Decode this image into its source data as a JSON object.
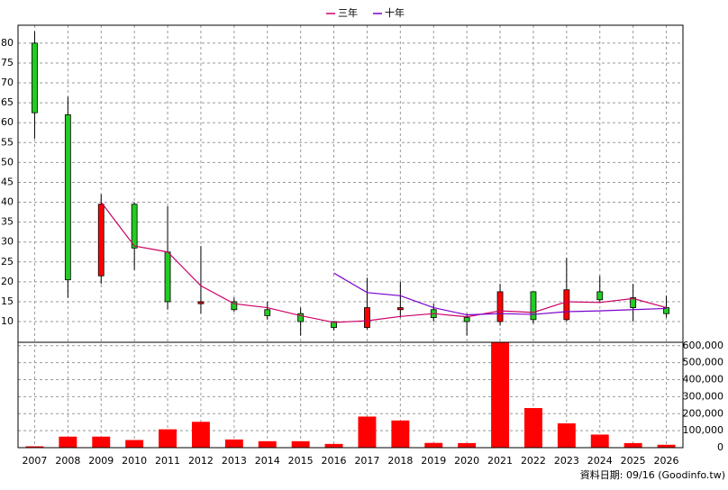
{
  "chart_data": [
    {
      "type": "candlestick",
      "categories": [
        "2007",
        "2008",
        "2009",
        "2010",
        "2011",
        "2012",
        "2013",
        "2014",
        "2015",
        "2016",
        "2017",
        "2018",
        "2019",
        "2020",
        "2021",
        "2022",
        "2023",
        "2024",
        "2025",
        "2026"
      ],
      "open": [
        80,
        62,
        21.5,
        39.5,
        27.5,
        14.5,
        15,
        13,
        12,
        10,
        8.5,
        13,
        13,
        11,
        10,
        17.5,
        10.5,
        17.5,
        16,
        13.5
      ],
      "high": [
        83,
        66.5,
        42,
        40,
        39,
        29,
        16,
        15,
        13.5,
        10,
        21,
        20,
        14.5,
        12,
        19.5,
        17.5,
        26,
        21.5,
        19.5,
        16.5
      ],
      "low": [
        56,
        16,
        19.5,
        23,
        13,
        12,
        12.5,
        10.5,
        6.5,
        7.8,
        8,
        11,
        10,
        6.5,
        9,
        9.5,
        10,
        15,
        10,
        11
      ],
      "close": [
        62.5,
        20.5,
        39.5,
        28.5,
        15,
        15,
        13,
        11.5,
        10,
        8.5,
        13.5,
        13.5,
        11,
        10,
        17.5,
        10.5,
        18,
        15.5,
        13.5,
        12
      ],
      "up_color": "#ff0000",
      "down_color": "#22cc22",
      "series": [
        {
          "name": "三年",
          "color": "#cc0066",
          "values": [
            null,
            null,
            40,
            29,
            27.5,
            19,
            14.5,
            13.5,
            11.5,
            9.8,
            10.2,
            11.3,
            12,
            11.2,
            12.7,
            12.3,
            15,
            14.8,
            15.8,
            13.5
          ]
        },
        {
          "name": "十年",
          "color": "#7a00cc",
          "values": [
            null,
            null,
            null,
            null,
            null,
            null,
            null,
            null,
            null,
            22.2,
            17.3,
            16.5,
            13.5,
            11.7,
            12,
            11.8,
            12.5,
            12.7,
            13,
            13.3
          ]
        }
      ],
      "ylim": [
        4.8,
        84.5
      ],
      "yticks": [
        10,
        15,
        20,
        25,
        30,
        35,
        40,
        45,
        50,
        55,
        60,
        65,
        70,
        75,
        80
      ],
      "grid": true,
      "legend": "top"
    },
    {
      "type": "bar",
      "values": [
        8000,
        65000,
        65000,
        45000,
        108000,
        152000,
        48000,
        38000,
        38000,
        22000,
        183000,
        160000,
        28000,
        27000,
        620000,
        233000,
        143000,
        77000,
        27000,
        17000
      ],
      "color": "#ff0000",
      "ylim": [
        0,
        620000
      ],
      "yticks": [
        0,
        {
          "value": 100000,
          "label": "100,000"
        },
        {
          "value": 200000,
          "label": "200,000"
        },
        {
          "value": 300000,
          "label": "300,000"
        },
        {
          "value": 400000,
          "label": "400,000"
        },
        {
          "value": 500000,
          "label": "500,000"
        },
        {
          "value": 600000,
          "label": "600,000"
        }
      ],
      "grid": true
    }
  ],
  "source": "資料日期: 09/16  (Goodinfo.tw)"
}
